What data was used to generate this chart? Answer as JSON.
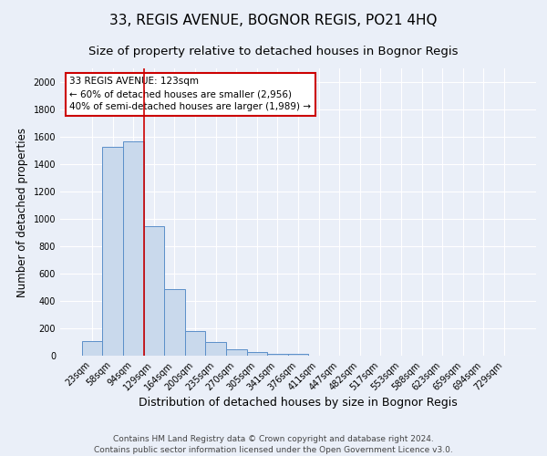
{
  "title1": "33, REGIS AVENUE, BOGNOR REGIS, PO21 4HQ",
  "title2": "Size of property relative to detached houses in Bognor Regis",
  "xlabel": "Distribution of detached houses by size in Bognor Regis",
  "ylabel": "Number of detached properties",
  "footer": "Contains HM Land Registry data © Crown copyright and database right 2024.\nContains public sector information licensed under the Open Government Licence v3.0.",
  "bar_labels": [
    "23sqm",
    "58sqm",
    "94sqm",
    "129sqm",
    "164sqm",
    "200sqm",
    "235sqm",
    "270sqm",
    "305sqm",
    "341sqm",
    "376sqm",
    "411sqm",
    "447sqm",
    "482sqm",
    "517sqm",
    "553sqm",
    "588sqm",
    "623sqm",
    "659sqm",
    "694sqm",
    "729sqm"
  ],
  "bar_values": [
    110,
    1530,
    1570,
    945,
    490,
    180,
    100,
    45,
    25,
    15,
    15,
    0,
    0,
    0,
    0,
    0,
    0,
    0,
    0,
    0,
    0
  ],
  "bar_color": "#c9d9ec",
  "bar_edge_color": "#5b8fc9",
  "vline_color": "#cc0000",
  "vline_x_index": 2.5,
  "annotation_text": "33 REGIS AVENUE: 123sqm\n← 60% of detached houses are smaller (2,956)\n40% of semi-detached houses are larger (1,989) →",
  "annotation_box_color": "#ffffff",
  "annotation_box_edge": "#cc0000",
  "ylim": [
    0,
    2100
  ],
  "yticks": [
    0,
    200,
    400,
    600,
    800,
    1000,
    1200,
    1400,
    1600,
    1800,
    2000
  ],
  "background_color": "#eaeff8",
  "grid_color": "#ffffff",
  "title1_fontsize": 11,
  "title2_fontsize": 9.5,
  "xlabel_fontsize": 9,
  "ylabel_fontsize": 8.5,
  "tick_fontsize": 7,
  "annotation_fontsize": 7.5,
  "footer_fontsize": 6.5
}
